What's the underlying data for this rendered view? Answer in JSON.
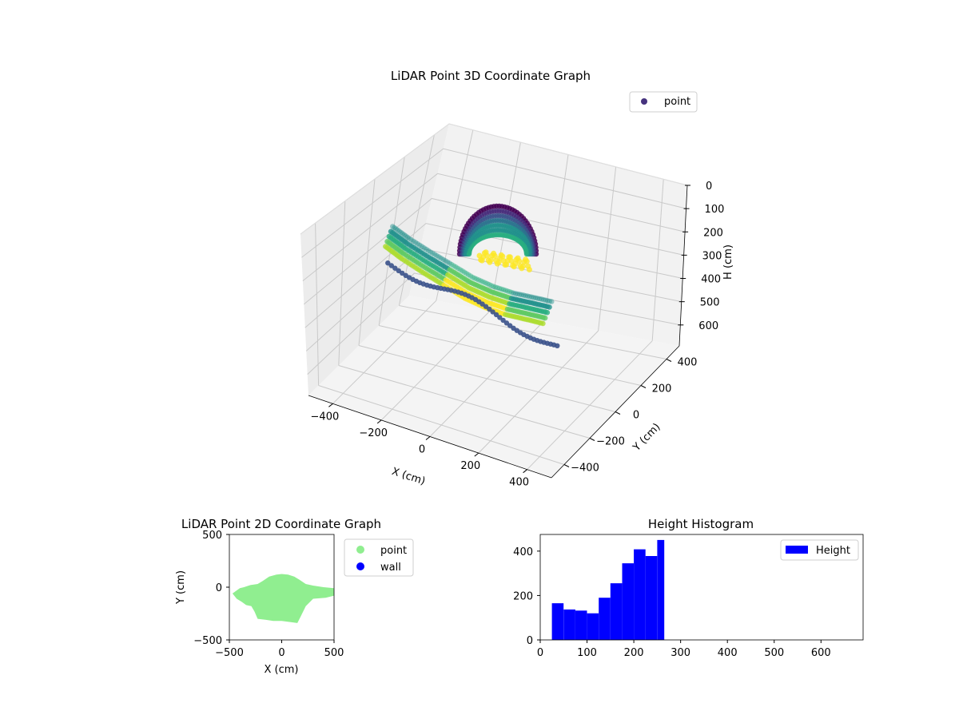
{
  "chart_data": [
    {
      "type": "scatter3d",
      "title": "LiDAR Point 3D Coordinate Graph",
      "xlabel": "X (cm)",
      "ylabel": "Y (cm)",
      "zlabel": "H (cm)",
      "x_ticks": [
        "−400",
        "−200",
        "0",
        "200",
        "400"
      ],
      "y_ticks": [
        "−400",
        "−200",
        "0",
        "200",
        "400"
      ],
      "z_ticks": [
        "0",
        "100",
        "200",
        "300",
        "400",
        "500",
        "600"
      ],
      "xlim": [
        -500,
        500
      ],
      "ylim": [
        -500,
        500
      ],
      "zlim": [
        0,
        690
      ],
      "z_inverted": true,
      "colormap": "viridis",
      "legend": [
        "point"
      ],
      "legend_position": "top-right",
      "grid": true,
      "series": [
        {
          "name": "point",
          "description_points": [
            {
              "x": -380,
              "y": 60,
              "h": 230
            },
            {
              "x": -300,
              "y": 20,
              "h": 240
            },
            {
              "x": -200,
              "y": -20,
              "h": 250
            },
            {
              "x": -100,
              "y": -60,
              "h": 255
            },
            {
              "x": 0,
              "y": -100,
              "h": 260
            },
            {
              "x": 100,
              "y": -140,
              "h": 250
            },
            {
              "x": 200,
              "y": -180,
              "h": 230
            },
            {
              "x": 300,
              "y": -220,
              "h": 200
            },
            {
              "x": 400,
              "y": -260,
              "h": 170
            }
          ]
        }
      ]
    },
    {
      "type": "scatter",
      "title": "LiDAR Point 2D Coordinate Graph",
      "xlabel": "X (cm)",
      "ylabel": "Y (cm)",
      "xlim": [
        -500,
        500
      ],
      "ylim": [
        -500,
        500
      ],
      "x_ticks": [
        "−500",
        "0",
        "500"
      ],
      "y_ticks": [
        "500",
        "0",
        "−500"
      ],
      "legend": [
        "point",
        "wall"
      ],
      "legend_position": "outside right",
      "series": [
        {
          "name": "point",
          "color": "#90ee90",
          "outline": [
            [
              -470,
              -60
            ],
            [
              -400,
              -10
            ],
            [
              -360,
              0
            ],
            [
              -300,
              20
            ],
            [
              -230,
              30
            ],
            [
              -180,
              60
            ],
            [
              -120,
              100
            ],
            [
              -50,
              120
            ],
            [
              0,
              125
            ],
            [
              60,
              120
            ],
            [
              120,
              100
            ],
            [
              170,
              70
            ],
            [
              230,
              30
            ],
            [
              300,
              15
            ],
            [
              400,
              0
            ],
            [
              500,
              -10
            ],
            [
              500,
              -80
            ],
            [
              420,
              -100
            ],
            [
              300,
              -110
            ],
            [
              230,
              -180
            ],
            [
              180,
              -280
            ],
            [
              150,
              -340
            ],
            [
              80,
              -330
            ],
            [
              0,
              -320
            ],
            [
              -80,
              -320
            ],
            [
              -150,
              -310
            ],
            [
              -230,
              -300
            ],
            [
              -260,
              -230
            ],
            [
              -290,
              -180
            ],
            [
              -340,
              -170
            ],
            [
              -380,
              -140
            ],
            [
              -430,
              -110
            ]
          ]
        },
        {
          "name": "wall",
          "color": "#0000ff",
          "points": []
        }
      ]
    },
    {
      "type": "bar",
      "title": "Height Histogram",
      "legend": [
        "Height"
      ],
      "legend_position": "top-right",
      "xlim": [
        0,
        690
      ],
      "ylim": [
        0,
        475
      ],
      "x_ticks": [
        0,
        100,
        200,
        300,
        400,
        500,
        600
      ],
      "y_ticks": [
        0,
        200,
        400
      ],
      "bin_edges": [
        25,
        50,
        75,
        100,
        125,
        150,
        175,
        200,
        225,
        250,
        265
      ],
      "series": [
        {
          "name": "Height",
          "color": "#0000ff",
          "values": [
            165,
            137,
            132,
            120,
            190,
            255,
            345,
            408,
            378,
            450
          ]
        }
      ]
    }
  ]
}
